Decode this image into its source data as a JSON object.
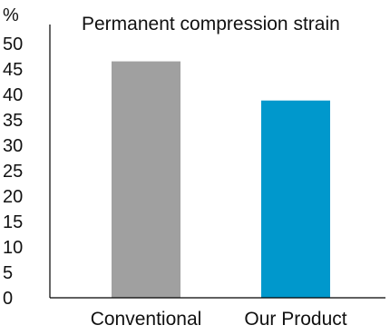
{
  "chart_data": {
    "type": "bar",
    "title": "Permanent compression strain",
    "ylabel": "%",
    "xlabel": "",
    "categories": [
      "Conventional",
      "Our Product"
    ],
    "values": [
      46.5,
      38.8
    ],
    "colors": [
      "#a0a0a0",
      "#0098cc"
    ],
    "ylim": [
      0,
      50
    ],
    "yticks": [
      0,
      5,
      10,
      15,
      20,
      25,
      30,
      35,
      40,
      45,
      50
    ],
    "grid": false,
    "legend": "none"
  }
}
